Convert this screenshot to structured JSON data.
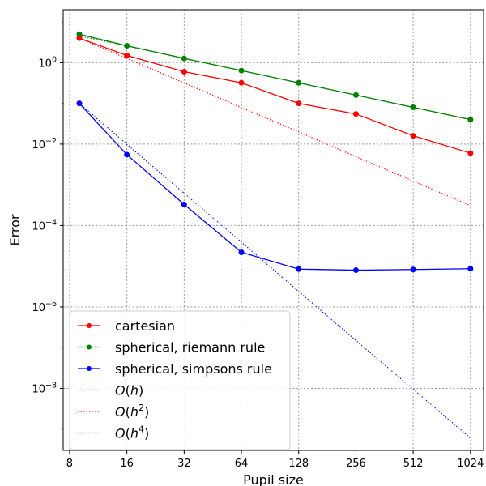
{
  "chart_data": {
    "type": "line",
    "xlabel": "Pupil size",
    "ylabel": "Error",
    "xscale": "log2",
    "yscale": "log10",
    "xlim": [
      7.4,
      1200
    ],
    "ylim": [
      3e-10,
      20
    ],
    "grid": true,
    "legend_position": "lower-left",
    "xticks": [
      {
        "value": 8,
        "label": "8"
      },
      {
        "value": 16,
        "label": "16"
      },
      {
        "value": 32,
        "label": "32"
      },
      {
        "value": 64,
        "label": "64"
      },
      {
        "value": 128,
        "label": "128"
      },
      {
        "value": 256,
        "label": "256"
      },
      {
        "value": 512,
        "label": "512"
      },
      {
        "value": 1024,
        "label": "1024"
      }
    ],
    "yticks": [
      {
        "value": 1e-08,
        "base": "10",
        "exp": "−8"
      },
      {
        "value": 1e-06,
        "base": "10",
        "exp": "−6"
      },
      {
        "value": 0.0001,
        "base": "10",
        "exp": "−4"
      },
      {
        "value": 0.01,
        "base": "10",
        "exp": "−2"
      },
      {
        "value": 1,
        "base": "10",
        "exp": "0"
      }
    ],
    "x": [
      9,
      16,
      32,
      64,
      128,
      256,
      512,
      1024
    ],
    "series": [
      {
        "name": "cartesian",
        "color": "#ff0000",
        "style": "solid",
        "marker": true,
        "values": [
          4.0,
          1.5,
          0.6,
          0.32,
          0.1,
          0.055,
          0.016,
          0.006
        ]
      },
      {
        "name": "spherical, riemann rule",
        "color": "#008000",
        "style": "solid",
        "marker": true,
        "values": [
          5.0,
          2.6,
          1.27,
          0.64,
          0.32,
          0.16,
          0.08,
          0.04
        ]
      },
      {
        "name": "spherical, simpsons rule",
        "color": "#0000ff",
        "style": "solid",
        "marker": true,
        "values": [
          0.1,
          0.0055,
          0.00033,
          2.2e-05,
          8.5e-06,
          8e-06,
          8.3e-06,
          8.7e-06
        ]
      },
      {
        "name": "O(h)",
        "legend_main": "O",
        "legend_arg": "h",
        "legend_exp": "",
        "color": "#008000",
        "style": "dotted",
        "marker": false,
        "values": [
          4.55,
          2.56,
          1.28,
          0.64,
          0.32,
          0.16,
          0.08,
          0.04
        ]
      },
      {
        "name": "O(h^2)",
        "legend_main": "O",
        "legend_arg": "h",
        "legend_exp": "2",
        "color": "#ff0000",
        "style": "dotted",
        "marker": false,
        "values": [
          4.0,
          1.27,
          0.32,
          0.079,
          0.02,
          0.0049,
          0.00124,
          0.00031
        ]
      },
      {
        "name": "O(h^4)",
        "legend_main": "O",
        "legend_arg": "h",
        "legend_exp": "4",
        "color": "#0000ff",
        "style": "dotted",
        "marker": false,
        "values": [
          0.1,
          0.0099,
          0.00062,
          3.9e-05,
          2.4e-06,
          1.5e-07,
          9.5e-09,
          6e-10
        ]
      }
    ]
  }
}
